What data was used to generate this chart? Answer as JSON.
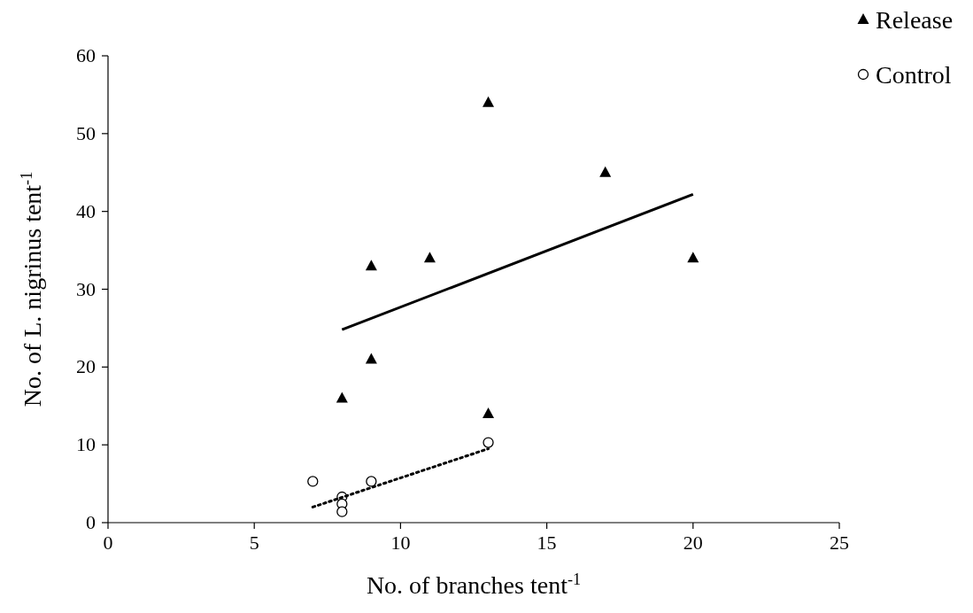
{
  "chart_data": {
    "type": "scatter",
    "xlabel": "No. of branches tent$^{-1}$",
    "ylabel": "No. of L. nigrinus tent$^{-1}$",
    "xlim": [
      0,
      25
    ],
    "xticks": [
      0,
      5,
      10,
      15,
      20,
      25
    ],
    "ylim": [
      0,
      60
    ],
    "yticks": [
      0,
      10,
      20,
      30,
      40,
      50,
      60
    ],
    "grid": false,
    "legend": "top right",
    "series": [
      {
        "name": "Release",
        "type": "scatter",
        "marker": "triangle",
        "color": "#000000",
        "x": [
          8,
          9,
          9,
          11,
          13,
          13,
          17,
          20
        ],
        "values": [
          16,
          21,
          33,
          34,
          54,
          14,
          45,
          34
        ]
      },
      {
        "name": "Control",
        "type": "scatter",
        "marker": "circle",
        "color": "#000000",
        "x": [
          7,
          8,
          8,
          8,
          9,
          13
        ],
        "values": [
          5.3,
          3.3,
          2.4,
          1.4,
          5.3,
          10.3
        ]
      },
      {
        "type": "line",
        "marker": "none",
        "line_style": "solid",
        "color": "#000000",
        "x": [
          8,
          20
        ],
        "values": [
          24.8,
          42.2
        ]
      },
      {
        "type": "line",
        "marker": "none",
        "line_style": "dotted",
        "color": "#000000",
        "x": [
          7,
          13
        ],
        "values": [
          2.0,
          9.5
        ]
      }
    ]
  }
}
